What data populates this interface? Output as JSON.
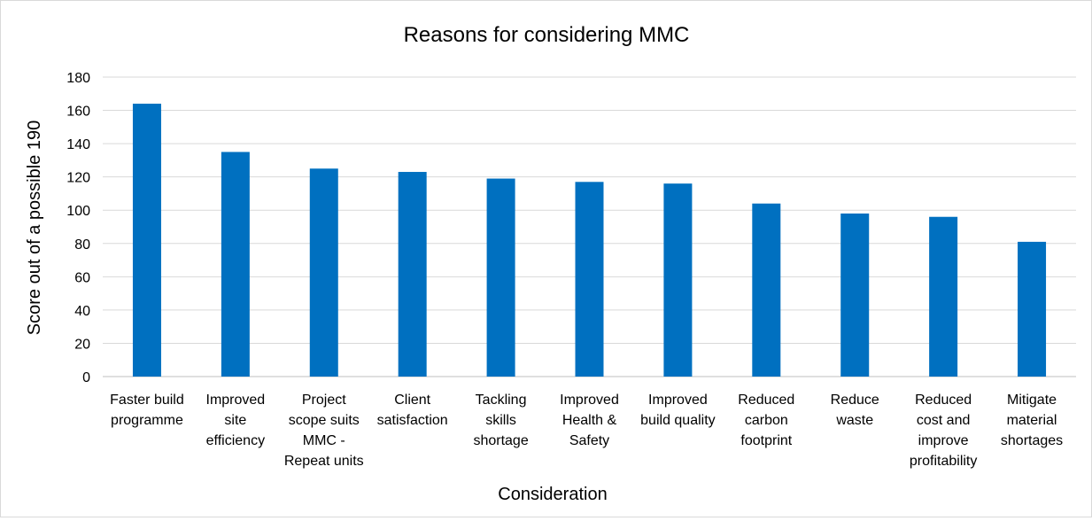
{
  "chart_data": {
    "type": "bar",
    "title": "Reasons for considering MMC",
    "xlabel": "Consideration",
    "ylabel": "Score out of  a possible 190",
    "ylim": [
      0,
      180
    ],
    "yticks": [
      0,
      20,
      40,
      60,
      80,
      100,
      120,
      140,
      160,
      180
    ],
    "grid": true,
    "bar_color": "#0070C0",
    "categories": [
      [
        "Faster build",
        "programme"
      ],
      [
        "Improved",
        "site",
        "efficiency"
      ],
      [
        "Project",
        "scope suits",
        "MMC -",
        "Repeat units"
      ],
      [
        "Client",
        "satisfaction"
      ],
      [
        "Tackling",
        "skills",
        "shortage"
      ],
      [
        "Improved",
        "Health &",
        "Safety"
      ],
      [
        "Improved",
        "build quality"
      ],
      [
        "Reduced",
        "carbon",
        "footprint"
      ],
      [
        "Reduce",
        "waste"
      ],
      [
        "Reduced",
        "cost and",
        "improve",
        "profitability"
      ],
      [
        "Mitigate",
        "material",
        "shortages"
      ]
    ],
    "values": [
      164,
      135,
      125,
      123,
      119,
      117,
      116,
      104,
      98,
      96,
      81
    ]
  }
}
